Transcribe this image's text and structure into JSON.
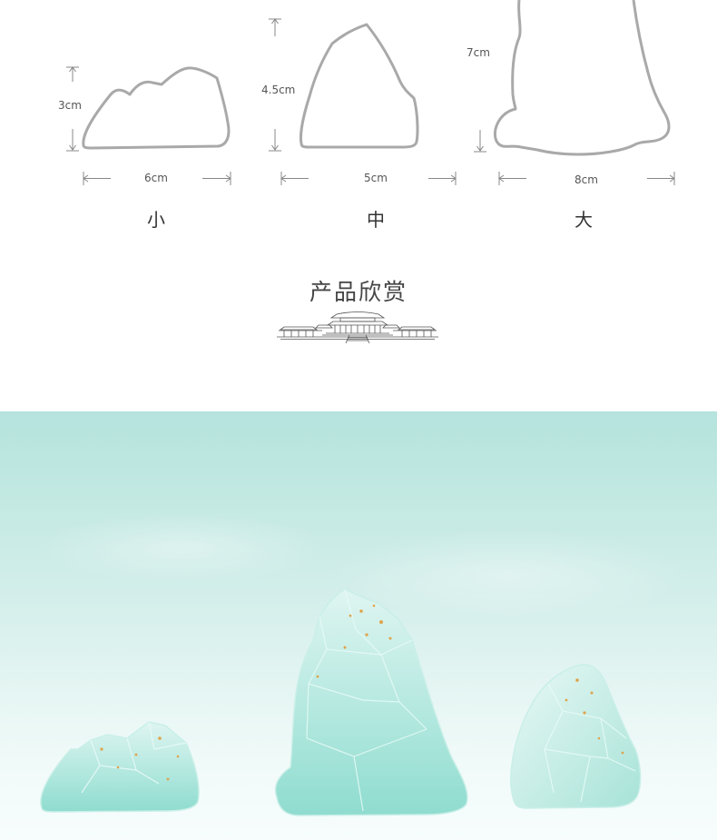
{
  "dimensions": {
    "small": {
      "height": "3cm",
      "width": "6cm",
      "name": "小"
    },
    "medium": {
      "height": "4.5cm",
      "width": "5cm",
      "name": "中"
    },
    "large": {
      "height": "7cm",
      "width": "8cm",
      "name": "大"
    }
  },
  "section": {
    "title": "产品欣赏"
  },
  "colors": {
    "outline": "#a9a9a9",
    "background_top": "#b5e3dd",
    "background_bottom": "#f7fdfd",
    "crystal": "#9fe0d6",
    "gold_flake": "#e0a34a"
  }
}
